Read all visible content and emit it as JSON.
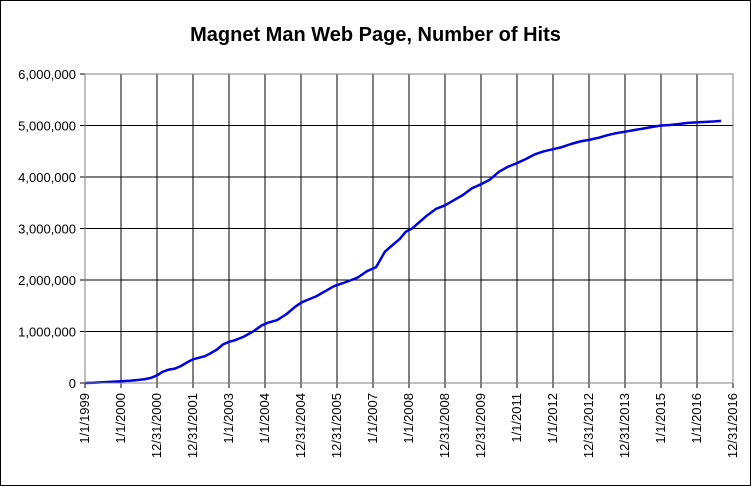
{
  "chart_data": {
    "type": "line",
    "title": "Magnet Man Web Page, Number of Hits",
    "xlabel": "",
    "ylabel": "",
    "ylim": [
      0,
      6000000
    ],
    "y_ticks": [
      "0",
      "1,000,000",
      "2,000,000",
      "3,000,000",
      "4,000,000",
      "5,000,000",
      "6,000,000"
    ],
    "x_tick_labels": [
      "1/1/1999",
      "1/1/2000",
      "12/31/2000",
      "12/31/2001",
      "1/1/2003",
      "1/1/2004",
      "12/31/2004",
      "12/31/2005",
      "1/1/2007",
      "1/1/2008",
      "12/31/2008",
      "12/31/2009",
      "1/1/2011",
      "1/1/2012",
      "12/31/2012",
      "12/31/2013",
      "1/1/2015",
      "1/1/2016",
      "12/31/2016"
    ],
    "grid": true,
    "legend": "none",
    "line_color": "#0000dd",
    "series": [
      {
        "x": [
          "1999-01-01",
          "1999-04-01",
          "1999-07-01",
          "1999-10-01",
          "2000-01-01",
          "2000-04-01",
          "2000-07-01",
          "2000-09-01",
          "2000-11-01",
          "2001-01-01",
          "2001-03-01",
          "2001-05-01",
          "2001-07-01",
          "2001-09-01",
          "2001-11-01",
          "2002-01-01",
          "2002-03-01",
          "2002-05-01",
          "2002-07-01",
          "2002-09-01",
          "2002-11-01",
          "2003-01-01",
          "2003-03-01",
          "2003-06-01",
          "2003-09-01",
          "2003-12-01",
          "2004-02-01",
          "2004-05-01",
          "2004-08-01",
          "2004-11-01",
          "2005-01-01",
          "2005-03-01",
          "2005-06-01",
          "2005-09-01",
          "2005-12-01",
          "2006-02-01",
          "2006-05-01",
          "2006-08-01",
          "2006-11-01",
          "2007-02-01",
          "2007-05-01",
          "2007-07-01",
          "2007-10-01",
          "2007-12-01",
          "2008-02-01",
          "2008-04-01",
          "2008-07-01",
          "2008-10-01",
          "2009-01-01",
          "2009-04-01",
          "2009-07-01",
          "2009-10-01",
          "2010-01-01",
          "2010-04-01",
          "2010-07-01",
          "2010-10-01",
          "2011-01-01",
          "2011-04-01",
          "2011-07-01",
          "2011-10-01",
          "2012-01-01",
          "2012-04-01",
          "2012-07-01",
          "2012-10-01",
          "2013-01-01",
          "2013-04-01",
          "2013-07-01",
          "2013-10-01",
          "2014-01-01",
          "2014-04-01",
          "2014-07-01",
          "2014-10-01",
          "2015-01-01",
          "2015-04-01",
          "2015-07-01",
          "2015-10-01",
          "2016-01-01",
          "2016-04-01",
          "2016-07-01",
          "2016-09-01"
        ],
        "values": [
          0,
          5000,
          15000,
          25000,
          35000,
          45000,
          60000,
          75000,
          100000,
          150000,
          220000,
          260000,
          280000,
          330000,
          400000,
          460000,
          490000,
          520000,
          580000,
          650000,
          750000,
          800000,
          830000,
          900000,
          1000000,
          1120000,
          1170000,
          1220000,
          1330000,
          1480000,
          1560000,
          1610000,
          1680000,
          1780000,
          1880000,
          1920000,
          1980000,
          2050000,
          2170000,
          2250000,
          2550000,
          2650000,
          2800000,
          2940000,
          3000000,
          3100000,
          3250000,
          3380000,
          3450000,
          3550000,
          3650000,
          3780000,
          3860000,
          3950000,
          4100000,
          4200000,
          4270000,
          4350000,
          4440000,
          4500000,
          4540000,
          4580000,
          4640000,
          4690000,
          4720000,
          4760000,
          4810000,
          4850000,
          4880000,
          4910000,
          4940000,
          4970000,
          5000000,
          5010000,
          5030000,
          5050000,
          5060000,
          5070000,
          5080000,
          5090000
        ]
      }
    ]
  }
}
